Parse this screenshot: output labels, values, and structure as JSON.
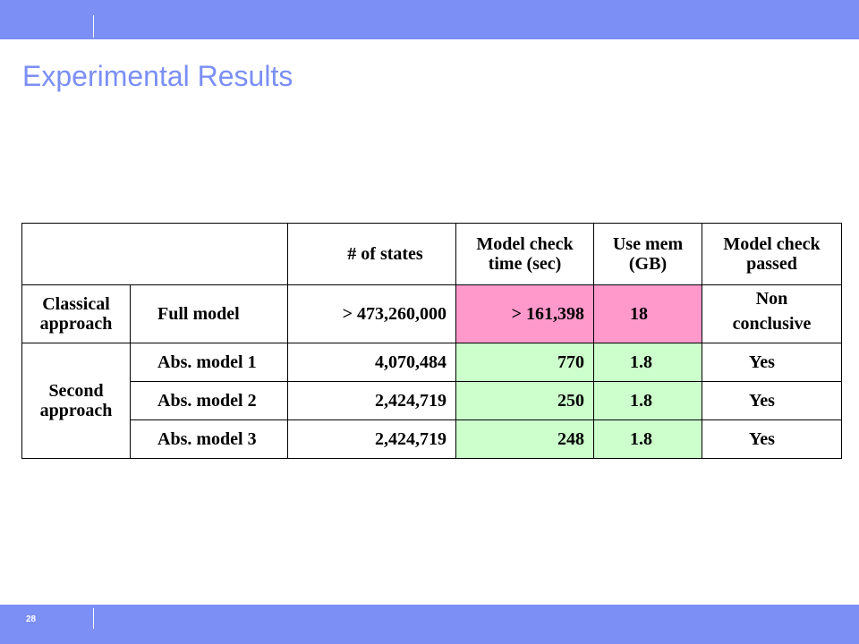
{
  "page": {
    "title": "Experimental Results",
    "page_number": "28"
  },
  "colors": {
    "bar": "#7b8ff5",
    "highlight_pink": "#ff99cc",
    "highlight_green": "#ccffcc"
  },
  "table": {
    "headers": {
      "states": "# of states",
      "time_line1": "Model check",
      "time_line2": "time (sec)",
      "mem_line1": "Use mem",
      "mem_line2": "(GB)",
      "passed_line1": "Model check",
      "passed_line2": "passed"
    },
    "groups": {
      "classical_line1": "Classical",
      "classical_line2": "approach",
      "second_line1": "Second",
      "second_line2": "approach"
    },
    "rows": [
      {
        "model": "Full model",
        "states": "> 473,260,000",
        "time": "> 161,398",
        "mem": "18",
        "passed_line1": "Non",
        "passed_line2": "conclusive"
      },
      {
        "model": "Abs. model 1",
        "states": "4,070,484",
        "time": "770",
        "mem": "1.8",
        "passed": "Yes"
      },
      {
        "model": "Abs. model 2",
        "states": "2,424,719",
        "time": "250",
        "mem": "1.8",
        "passed": "Yes"
      },
      {
        "model": "Abs. model 3",
        "states": "2,424,719",
        "time": "248",
        "mem": "1.8",
        "passed": "Yes"
      }
    ]
  }
}
